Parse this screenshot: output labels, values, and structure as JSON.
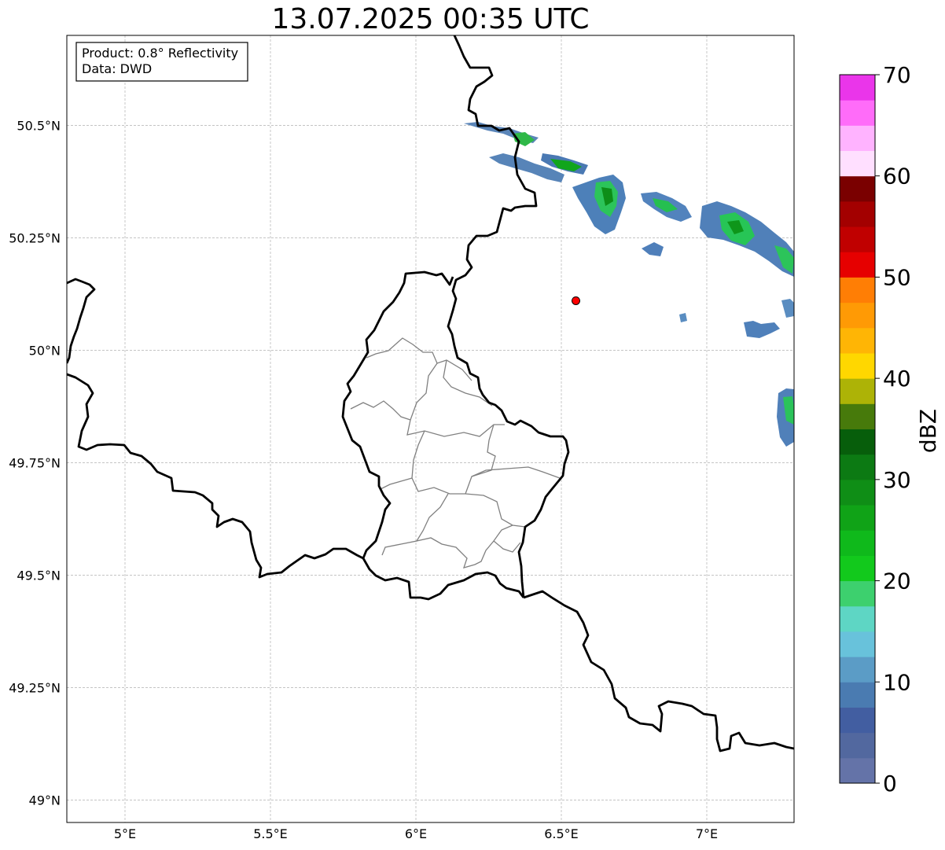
{
  "title": "13.07.2025 00:35 UTC",
  "info_box": {
    "product_line": "Product: 0.8° Reflectivity",
    "data_line": "Data: DWD"
  },
  "map": {
    "lon_range": [
      4.8,
      7.3
    ],
    "lat_range": [
      48.95,
      50.7
    ],
    "x_ticks": [
      {
        "lon": 5.0,
        "label": "5°E"
      },
      {
        "lon": 5.5,
        "label": "5.5°E"
      },
      {
        "lon": 6.0,
        "label": "6°E"
      },
      {
        "lon": 6.5,
        "label": "6.5°E"
      },
      {
        "lon": 7.0,
        "label": "7°E"
      }
    ],
    "y_ticks": [
      {
        "lat": 50.5,
        "label": "50.5°N"
      },
      {
        "lat": 50.25,
        "label": "50.25°N"
      },
      {
        "lat": 50.0,
        "label": "50°N"
      },
      {
        "lat": 49.75,
        "label": "49.75°N"
      },
      {
        "lat": 49.5,
        "label": "49.5°N"
      },
      {
        "lat": 49.25,
        "label": "49.25°N"
      },
      {
        "lat": 49.0,
        "label": "49°N"
      }
    ],
    "gridlines": true,
    "radar_site": {
      "lon": 6.55,
      "lat": 50.11,
      "color": "#ff0000"
    }
  },
  "colorbar": {
    "label": "dBZ",
    "min": 0,
    "max": 70,
    "tick_values": [
      0,
      10,
      20,
      30,
      40,
      50,
      60,
      70
    ],
    "tick_labels": [
      "0",
      "10",
      "20",
      "30",
      "40",
      "50",
      "60",
      "70"
    ],
    "colors": [
      "#6473a8",
      "#52689f",
      "#425ea1",
      "#4a7bb1",
      "#5b9cc6",
      "#68c2db",
      "#5ed6c4",
      "#3dd06e",
      "#12c91c",
      "#0fb91b",
      "#10a317",
      "#0f8e16",
      "#0c7a13",
      "#075e0b",
      "#477a0b",
      "#adb306",
      "#ffd700",
      "#ffb505",
      "#ff9a05",
      "#ff7e05",
      "#e60000",
      "#c00000",
      "#a30000",
      "#7a0000",
      "#ffdfff",
      "#ffb3ff",
      "#ff6cf9",
      "#ea35ea"
    ]
  }
}
